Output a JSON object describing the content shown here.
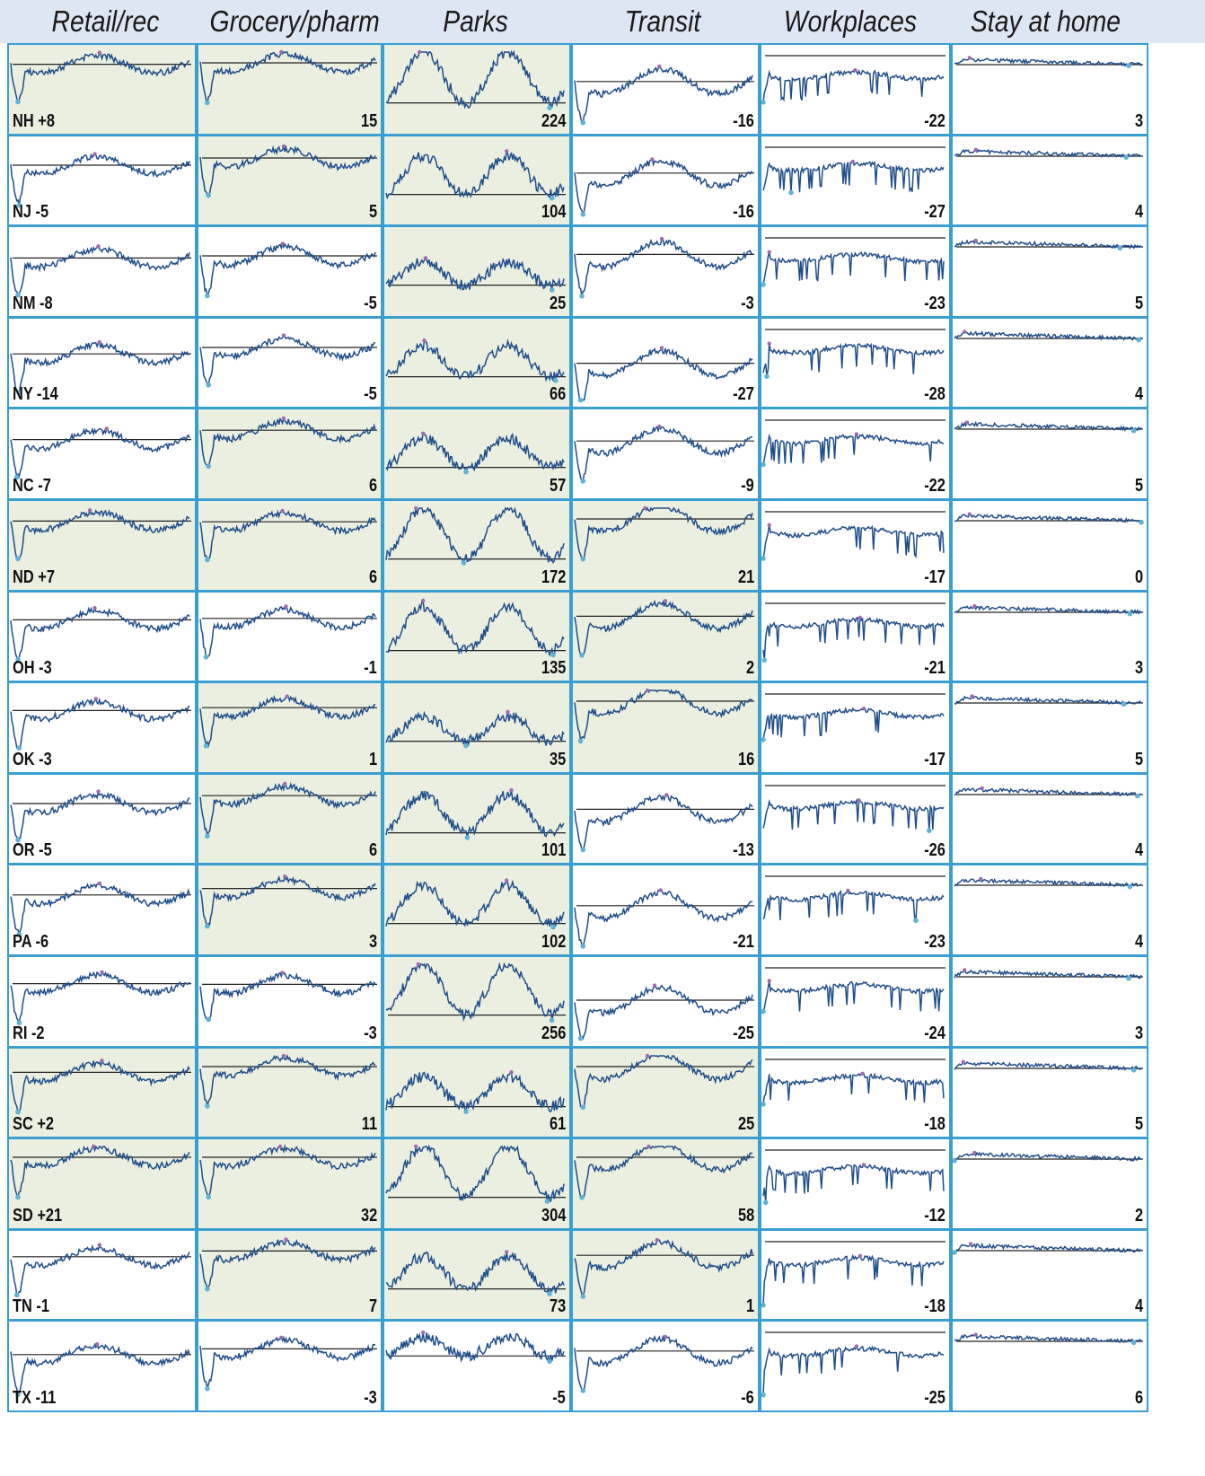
{
  "chart_data": {
    "type": "line",
    "title": "",
    "columns": [
      "Retail/rec",
      "Grocery/pharm",
      "Parks",
      "Transit stations",
      "Workplaces",
      "Stay at home"
    ],
    "highlight_color": "#eaefdf",
    "line_color": "#1f4e8c",
    "border_color": "#3a9fd0",
    "rows": [
      {
        "state": "NH",
        "label": "NH +8",
        "values": [
          8,
          15,
          224,
          -16,
          -22,
          3
        ],
        "highlight": [
          true,
          true,
          true,
          false,
          false,
          false
        ]
      },
      {
        "state": "NJ",
        "label": "NJ -5",
        "values": [
          -5,
          5,
          104,
          -16,
          -27,
          4
        ],
        "highlight": [
          false,
          true,
          true,
          false,
          false,
          false
        ]
      },
      {
        "state": "NM",
        "label": "NM -8",
        "values": [
          -8,
          -5,
          25,
          -3,
          -23,
          5
        ],
        "highlight": [
          false,
          false,
          true,
          false,
          false,
          false
        ]
      },
      {
        "state": "NY",
        "label": "NY -14",
        "values": [
          -14,
          -5,
          66,
          -27,
          -28,
          4
        ],
        "highlight": [
          false,
          false,
          true,
          false,
          false,
          false
        ]
      },
      {
        "state": "NC",
        "label": "NC -7",
        "values": [
          -7,
          6,
          57,
          -9,
          -22,
          5
        ],
        "highlight": [
          false,
          true,
          true,
          false,
          false,
          false
        ]
      },
      {
        "state": "ND",
        "label": "ND +7",
        "values": [
          7,
          6,
          172,
          21,
          -17,
          0
        ],
        "highlight": [
          true,
          true,
          true,
          true,
          false,
          false
        ]
      },
      {
        "state": "OH",
        "label": "OH -3",
        "values": [
          -3,
          -1,
          135,
          2,
          -21,
          3
        ],
        "highlight": [
          false,
          false,
          true,
          true,
          false,
          false
        ]
      },
      {
        "state": "OK",
        "label": "OK -3",
        "values": [
          -3,
          1,
          35,
          16,
          -17,
          5
        ],
        "highlight": [
          false,
          true,
          true,
          true,
          false,
          false
        ]
      },
      {
        "state": "OR",
        "label": "OR -5",
        "values": [
          -5,
          6,
          101,
          -13,
          -26,
          4
        ],
        "highlight": [
          false,
          true,
          true,
          false,
          false,
          false
        ]
      },
      {
        "state": "PA",
        "label": "PA -6",
        "values": [
          -6,
          3,
          102,
          -21,
          -23,
          4
        ],
        "highlight": [
          false,
          true,
          true,
          false,
          false,
          false
        ]
      },
      {
        "state": "RI",
        "label": "RI -2",
        "values": [
          -2,
          -3,
          256,
          -25,
          -24,
          3
        ],
        "highlight": [
          false,
          false,
          true,
          false,
          false,
          false
        ]
      },
      {
        "state": "SC",
        "label": "SC +2",
        "values": [
          2,
          11,
          61,
          25,
          -18,
          5
        ],
        "highlight": [
          true,
          true,
          true,
          true,
          false,
          false
        ]
      },
      {
        "state": "SD",
        "label": "SD +21",
        "values": [
          21,
          32,
          304,
          58,
          -12,
          2
        ],
        "highlight": [
          true,
          true,
          true,
          true,
          false,
          false
        ]
      },
      {
        "state": "TN",
        "label": "TN -1",
        "values": [
          -1,
          7,
          73,
          1,
          -18,
          4
        ],
        "highlight": [
          false,
          true,
          true,
          true,
          false,
          false
        ]
      },
      {
        "state": "TX",
        "label": "TX -11",
        "values": [
          -11,
          -3,
          -5,
          -6,
          -25,
          6
        ],
        "highlight": [
          false,
          false,
          false,
          false,
          false,
          false
        ]
      }
    ]
  }
}
